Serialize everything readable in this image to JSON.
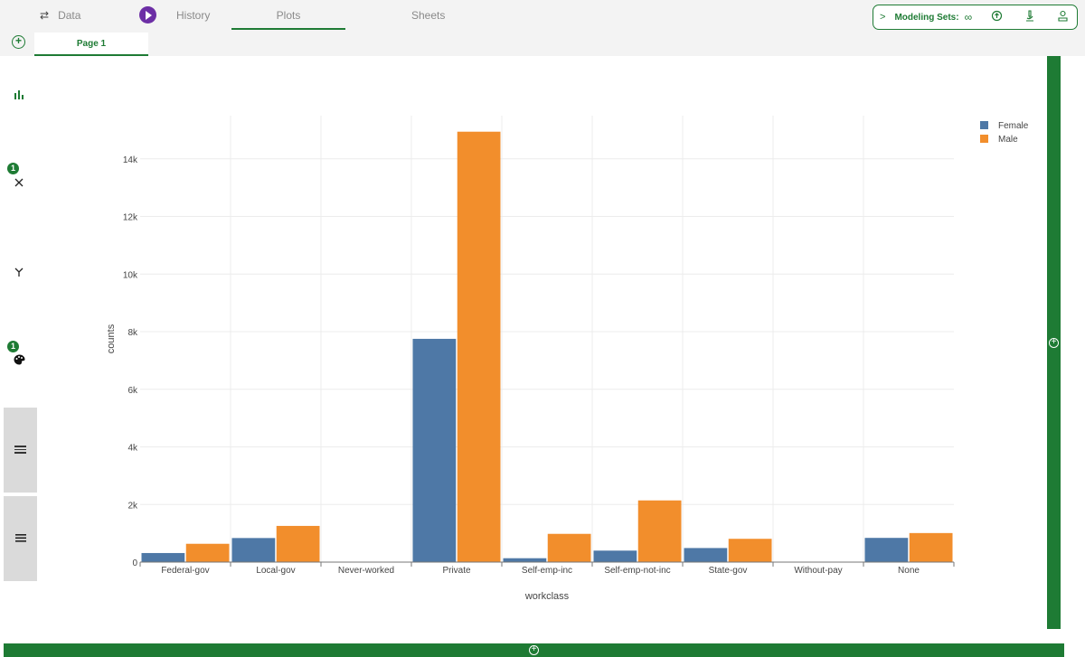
{
  "tabs": [
    {
      "label": "Data",
      "icon": "swap-arrows-icon"
    },
    {
      "label": "History",
      "icon": "play-icon"
    },
    {
      "label": "Plots",
      "active": true
    },
    {
      "label": "Sheets"
    }
  ],
  "modeling_sets": {
    "label": "Modeling Sets:",
    "icons": [
      "infinity-icon",
      "upload-cloud-icon",
      "microscope-icon",
      "scale-icon"
    ]
  },
  "pages": {
    "active_label": "Page 1"
  },
  "sidebar": {
    "items": [
      {
        "icon": "bar-chart-icon"
      },
      {
        "icon": "x-axis-icon",
        "badge": "1"
      },
      {
        "icon": "y-axis-icon"
      },
      {
        "icon": "color-palette-icon",
        "badge": "1"
      },
      {
        "icon": "facet-rows-icon"
      },
      {
        "icon": "list-icon"
      }
    ]
  },
  "colors": {
    "accent": "#1e7b34",
    "female": "#4e78a6",
    "male": "#f28e2c",
    "purple": "#6c2ea5"
  },
  "chart_data": {
    "type": "bar",
    "xlabel": "workclass",
    "ylabel": "counts",
    "categories": [
      "Federal-gov",
      "Local-gov",
      "Never-worked",
      "Private",
      "Self-emp-inc",
      "Self-emp-not-inc",
      "State-gov",
      "Without-pay",
      "None"
    ],
    "series": [
      {
        "name": "Female",
        "values": [
          315,
          836,
          5,
          7752,
          135,
          399,
          489,
          5,
          841
        ]
      },
      {
        "name": "Male",
        "values": [
          636,
          1257,
          5,
          14944,
          981,
          2142,
          809,
          9,
          1009
        ]
      }
    ],
    "ylim": [
      0,
      15500
    ],
    "yticks": [
      0,
      2000,
      4000,
      6000,
      8000,
      10000,
      12000,
      14000
    ],
    "ytick_labels": [
      "0",
      "2k",
      "4k",
      "6k",
      "8k",
      "10k",
      "12k",
      "14k"
    ],
    "grid": true,
    "legend_position": "top-right"
  }
}
